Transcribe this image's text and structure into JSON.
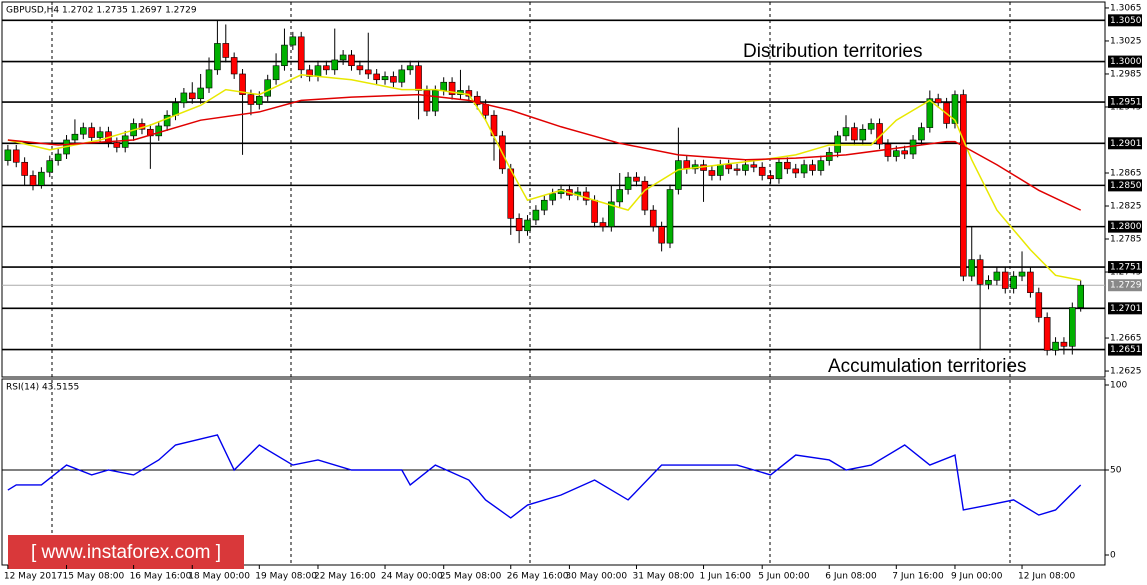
{
  "chart_data": {
    "type": "candlestick",
    "symbol": "GBPUSD,H4  1.2702 1.2735 1.2697 1.2729",
    "annotations": [
      "Distribution territories",
      "Accumulation territories"
    ],
    "watermark": "[ www.instaforex.com ]",
    "up_color": "#00b000",
    "down_color": "#ff0000",
    "xlim": [
      -0.7,
      130.9
    ],
    "ylim": [
      1.2619,
      1.3071
    ],
    "yticks": [
      1.3065,
      1.3025,
      1.2985,
      1.2945,
      1.2865,
      1.2825,
      1.2785,
      1.2745,
      1.2665,
      1.2625
    ],
    "levels": [
      {
        "value": 1.305,
        "label": "1.3050"
      },
      {
        "value": 1.3,
        "label": "1.3000"
      },
      1.2951,
      1.2901,
      {
        "value": 1.285,
        "label": "1.2850"
      },
      {
        "value": 1.28,
        "label": "1.2800"
      },
      1.2751,
      1.2701,
      1.2651
    ],
    "current_price": 1.2729,
    "xticks": [
      {
        "value": 0,
        "label": "12 May 2017"
      },
      {
        "value": 7,
        "label": "15 May 08:00"
      },
      {
        "value": 15,
        "label": "16 May 16:00"
      },
      {
        "value": 22,
        "label": "18 May 00:00"
      },
      {
        "value": 30,
        "label": "19 May 08:00"
      },
      {
        "value": 37,
        "label": "22 May 16:00"
      },
      {
        "value": 45,
        "label": "24 May 00:00"
      },
      {
        "value": 52,
        "label": "25 May 08:00"
      },
      {
        "value": 60,
        "label": "26 May 16:00"
      },
      {
        "value": 67,
        "label": "30 May 00:00"
      },
      {
        "value": 75,
        "label": "31 May 08:00"
      },
      {
        "value": 83,
        "label": "1 Jun 16:00"
      },
      {
        "value": 90,
        "label": "5 Jun 00:00"
      },
      {
        "value": 98,
        "label": "6 Jun 08:00"
      },
      {
        "value": 106,
        "label": "7 Jun 16:00"
      },
      {
        "value": 113,
        "label": "9 Jun 00:00"
      },
      {
        "value": 121,
        "label": "12 Jun 08:00"
      }
    ],
    "ohlc": [
      [
        1.288,
        1.2899,
        1.2874,
        1.2893
      ],
      [
        1.2893,
        1.2899,
        1.2872,
        1.2878
      ],
      [
        1.2878,
        1.2884,
        1.285,
        1.2862
      ],
      [
        1.2862,
        1.2868,
        1.2844,
        1.285
      ],
      [
        1.285,
        1.2872,
        1.2846,
        1.2866
      ],
      [
        1.2866,
        1.2886,
        1.286,
        1.288
      ],
      [
        1.288,
        1.2894,
        1.2874,
        1.2888
      ],
      [
        1.2888,
        1.2911,
        1.2882,
        1.2905
      ],
      [
        1.2905,
        1.293,
        1.2899,
        1.2912
      ],
      [
        1.2912,
        1.2926,
        1.2906,
        1.292
      ],
      [
        1.292,
        1.2926,
        1.2902,
        1.2908
      ],
      [
        1.2908,
        1.2921,
        1.2902,
        1.2915
      ],
      [
        1.2915,
        1.2921,
        1.2896,
        1.2902
      ],
      [
        1.2902,
        1.2908,
        1.289,
        1.2896
      ],
      [
        1.2896,
        1.2916,
        1.289,
        1.291
      ],
      [
        1.291,
        1.2931,
        1.2904,
        1.2925
      ],
      [
        1.2925,
        1.2931,
        1.2912,
        1.2918
      ],
      [
        1.2918,
        1.2924,
        1.287,
        1.291
      ],
      [
        1.291,
        1.2928,
        1.2904,
        1.2922
      ],
      [
        1.2922,
        1.2941,
        1.2916,
        1.2935
      ],
      [
        1.2935,
        1.2956,
        1.2929,
        1.295
      ],
      [
        1.295,
        1.2968,
        1.2944,
        1.2962
      ],
      [
        1.2962,
        1.2975,
        1.2949,
        1.2955
      ],
      [
        1.2955,
        1.2985,
        1.2949,
        1.2968
      ],
      [
        1.2968,
        1.3005,
        1.2962,
        1.299
      ],
      [
        1.299,
        1.305,
        1.2984,
        1.3022
      ],
      [
        1.3022,
        1.3045,
        1.2999,
        1.3005
      ],
      [
        1.3005,
        1.3011,
        1.2979,
        1.2985
      ],
      [
        1.2985,
        1.2991,
        1.2887,
        1.296
      ],
      [
        1.296,
        1.2966,
        1.2935,
        1.2948
      ],
      [
        1.2948,
        1.2964,
        1.2942,
        1.2958
      ],
      [
        1.2958,
        1.2984,
        1.2952,
        1.2978
      ],
      [
        1.2978,
        1.301,
        1.2972,
        1.2995
      ],
      [
        1.2995,
        1.304,
        1.2989,
        1.302
      ],
      [
        1.302,
        1.3036,
        1.3014,
        1.303
      ],
      [
        1.303,
        1.3036,
        1.298,
        1.299
      ],
      [
        1.299,
        1.2996,
        1.2976,
        1.2982
      ],
      [
        1.2982,
        1.3001,
        1.2976,
        1.2995
      ],
      [
        1.2995,
        1.3001,
        1.2984,
        1.299
      ],
      [
        1.299,
        1.304,
        1.2984,
        1.3002
      ],
      [
        1.3002,
        1.3014,
        1.2996,
        1.3008
      ],
      [
        1.3008,
        1.3014,
        1.2989,
        1.2995
      ],
      [
        1.2995,
        1.3001,
        1.2984,
        1.299
      ],
      [
        1.299,
        1.3035,
        1.2979,
        1.2985
      ],
      [
        1.2985,
        1.2991,
        1.2972,
        1.2978
      ],
      [
        1.2978,
        1.2988,
        1.2972,
        1.2982
      ],
      [
        1.2982,
        1.2988,
        1.2969,
        1.2975
      ],
      [
        1.2975,
        1.2996,
        1.2969,
        1.299
      ],
      [
        1.299,
        1.3001,
        1.2984,
        1.2995
      ],
      [
        1.2995,
        1.3001,
        1.293,
        1.2965
      ],
      [
        1.2965,
        1.2971,
        1.2934,
        1.294
      ],
      [
        1.294,
        1.2971,
        1.2934,
        1.2965
      ],
      [
        1.2965,
        1.2981,
        1.2959,
        1.2975
      ],
      [
        1.2975,
        1.2981,
        1.2954,
        1.296
      ],
      [
        1.296,
        1.299,
        1.2954,
        1.2965
      ],
      [
        1.2965,
        1.2971,
        1.2952,
        1.2958
      ],
      [
        1.2958,
        1.2964,
        1.2942,
        1.2948
      ],
      [
        1.2948,
        1.2954,
        1.2929,
        1.2935
      ],
      [
        1.2935,
        1.2941,
        1.288,
        1.291
      ],
      [
        1.291,
        1.2916,
        1.2864,
        1.287
      ],
      [
        1.287,
        1.2876,
        1.279,
        1.281
      ],
      [
        1.281,
        1.2816,
        1.278,
        1.2795
      ],
      [
        1.2795,
        1.2814,
        1.2789,
        1.2808
      ],
      [
        1.2808,
        1.2826,
        1.2802,
        1.282
      ],
      [
        1.282,
        1.2838,
        1.2814,
        1.2832
      ],
      [
        1.2832,
        1.2846,
        1.2826,
        1.284
      ],
      [
        1.284,
        1.2851,
        1.2834,
        1.2845
      ],
      [
        1.2845,
        1.2851,
        1.2832,
        1.2838
      ],
      [
        1.2838,
        1.2848,
        1.2832,
        1.2842
      ],
      [
        1.2842,
        1.2848,
        1.2826,
        1.2832
      ],
      [
        1.2832,
        1.2838,
        1.2799,
        1.2805
      ],
      [
        1.2805,
        1.2811,
        1.2794,
        1.28
      ],
      [
        1.28,
        1.285,
        1.2794,
        1.283
      ],
      [
        1.283,
        1.2865,
        1.2824,
        1.2845
      ],
      [
        1.2845,
        1.2866,
        1.2839,
        1.286
      ],
      [
        1.286,
        1.2866,
        1.2849,
        1.2855
      ],
      [
        1.2855,
        1.2861,
        1.2814,
        1.282
      ],
      [
        1.282,
        1.2826,
        1.2794,
        1.28
      ],
      [
        1.28,
        1.2806,
        1.277,
        1.278
      ],
      [
        1.278,
        1.2851,
        1.2774,
        1.2845
      ],
      [
        1.2845,
        1.292,
        1.2839,
        1.288
      ],
      [
        1.288,
        1.2886,
        1.2864,
        1.287
      ],
      [
        1.287,
        1.2881,
        1.2864,
        1.2875
      ],
      [
        1.2875,
        1.2881,
        1.283,
        1.2868
      ],
      [
        1.2868,
        1.2874,
        1.2856,
        1.2862
      ],
      [
        1.2862,
        1.2881,
        1.2856,
        1.2875
      ],
      [
        1.2875,
        1.2881,
        1.2864,
        1.287
      ],
      [
        1.287,
        1.2876,
        1.2862,
        1.2868
      ],
      [
        1.2868,
        1.2881,
        1.2862,
        1.2875
      ],
      [
        1.2875,
        1.2881,
        1.2866,
        1.2872
      ],
      [
        1.2872,
        1.2878,
        1.2856,
        1.2862
      ],
      [
        1.2862,
        1.2868,
        1.2852,
        1.2858
      ],
      [
        1.2858,
        1.2884,
        1.2852,
        1.2878
      ],
      [
        1.2878,
        1.2884,
        1.2864,
        1.287
      ],
      [
        1.287,
        1.2876,
        1.2859,
        1.2865
      ],
      [
        1.2865,
        1.2881,
        1.2859,
        1.2875
      ],
      [
        1.2875,
        1.2881,
        1.2862,
        1.2868
      ],
      [
        1.2868,
        1.2886,
        1.2862,
        1.288
      ],
      [
        1.288,
        1.2896,
        1.2874,
        1.289
      ],
      [
        1.289,
        1.2916,
        1.2884,
        1.291
      ],
      [
        1.291,
        1.2935,
        1.2904,
        1.292
      ],
      [
        1.292,
        1.2926,
        1.2899,
        1.2905
      ],
      [
        1.2905,
        1.2924,
        1.2899,
        1.2918
      ],
      [
        1.2918,
        1.2931,
        1.2912,
        1.2925
      ],
      [
        1.2925,
        1.2931,
        1.2894,
        1.29
      ],
      [
        1.29,
        1.2906,
        1.2879,
        1.2885
      ],
      [
        1.2885,
        1.2898,
        1.2879,
        1.2892
      ],
      [
        1.2892,
        1.2898,
        1.2882,
        1.2888
      ],
      [
        1.2888,
        1.2911,
        1.2882,
        1.2905
      ],
      [
        1.2905,
        1.2926,
        1.2899,
        1.292
      ],
      [
        1.292,
        1.2965,
        1.2914,
        1.2955
      ],
      [
        1.2955,
        1.2961,
        1.2944,
        1.295
      ],
      [
        1.295,
        1.2956,
        1.2919,
        1.2925
      ],
      [
        1.2925,
        1.2965,
        1.2919,
        1.296
      ],
      [
        1.296,
        1.2966,
        1.2734,
        1.274
      ],
      [
        1.274,
        1.28,
        1.2734,
        1.276
      ],
      [
        1.276,
        1.2766,
        1.265,
        1.273
      ],
      [
        1.273,
        1.2741,
        1.2724,
        1.2735
      ],
      [
        1.2735,
        1.2751,
        1.2729,
        1.2745
      ],
      [
        1.2745,
        1.2751,
        1.2719,
        1.2725
      ],
      [
        1.2725,
        1.2746,
        1.2719,
        1.274
      ],
      [
        1.274,
        1.277,
        1.2734,
        1.2745
      ],
      [
        1.2745,
        1.2751,
        1.2714,
        1.272
      ],
      [
        1.272,
        1.2726,
        1.2684,
        1.269
      ],
      [
        1.269,
        1.2696,
        1.2644,
        1.265
      ],
      [
        1.265,
        1.2666,
        1.2644,
        1.266
      ],
      [
        1.266,
        1.2666,
        1.2645,
        1.2655
      ],
      [
        1.2655,
        1.2708,
        1.2645,
        1.2702
      ],
      [
        1.2702,
        1.2735,
        1.2697,
        1.2729
      ]
    ],
    "ma_lines": [
      {
        "color": "#e8e800",
        "x": [
          0,
          5,
          11,
          17,
          23,
          26,
          30,
          35,
          41,
          47,
          51,
          55,
          57,
          60,
          62,
          66,
          70,
          74,
          76,
          80,
          85,
          90,
          94,
          98,
          103,
          106,
          110,
          113,
          115,
          118,
          122,
          125,
          128
        ],
        "values": [
          1.2905,
          1.2893,
          1.2905,
          1.2923,
          1.2947,
          1.2966,
          1.296,
          1.2984,
          1.2978,
          1.2966,
          1.2966,
          1.296,
          1.2929,
          1.2869,
          1.2832,
          1.2844,
          1.2832,
          1.282,
          1.2844,
          1.2869,
          1.2875,
          1.2881,
          1.2887,
          1.2899,
          1.2899,
          1.2929,
          1.2953,
          1.2929,
          1.2881,
          1.282,
          1.2772,
          1.2741,
          1.2735
        ]
      },
      {
        "color": "#e00000",
        "x": [
          0,
          6,
          15,
          23,
          30,
          35,
          41,
          49,
          55,
          60,
          66,
          73,
          80,
          88,
          94,
          100,
          106,
          112,
          113,
          118,
          123,
          128
        ],
        "values": [
          1.2905,
          1.2899,
          1.2905,
          1.2929,
          1.2939,
          1.2953,
          1.2957,
          1.296,
          1.2953,
          1.2941,
          1.2921,
          1.2901,
          1.2887,
          1.2881,
          1.2883,
          1.2887,
          1.2895,
          1.2903,
          1.2903,
          1.2875,
          1.2844,
          1.282
        ]
      }
    ],
    "rsi": {
      "title": "RSI(14) 43.5155",
      "ylim": [
        0,
        100
      ],
      "yticks": [
        100,
        50,
        0
      ],
      "level": 50,
      "color": "#0000ee",
      "x": [
        0,
        1,
        4,
        7,
        10,
        12,
        15,
        18,
        20,
        25,
        27,
        30,
        34,
        37,
        41,
        47,
        48,
        51,
        55,
        57,
        60,
        62,
        66,
        70,
        74,
        78,
        82,
        87,
        91,
        94,
        98,
        100,
        103,
        107,
        110,
        113,
        114,
        117,
        120,
        123,
        125,
        128
      ],
      "values": [
        38.2,
        41.2,
        41.2,
        52.9,
        47.1,
        50,
        47.1,
        55.9,
        64.7,
        70.6,
        50,
        64.7,
        52.9,
        55.9,
        50,
        50,
        41.2,
        52.9,
        44.1,
        32.4,
        21.8,
        29.4,
        35.3,
        44.1,
        32.4,
        52.9,
        52.9,
        52.9,
        47.1,
        58.8,
        55.9,
        50,
        52.9,
        64.7,
        52.9,
        58.8,
        26.5,
        29.4,
        32.4,
        23.5,
        26.5,
        41.2
      ]
    }
  }
}
